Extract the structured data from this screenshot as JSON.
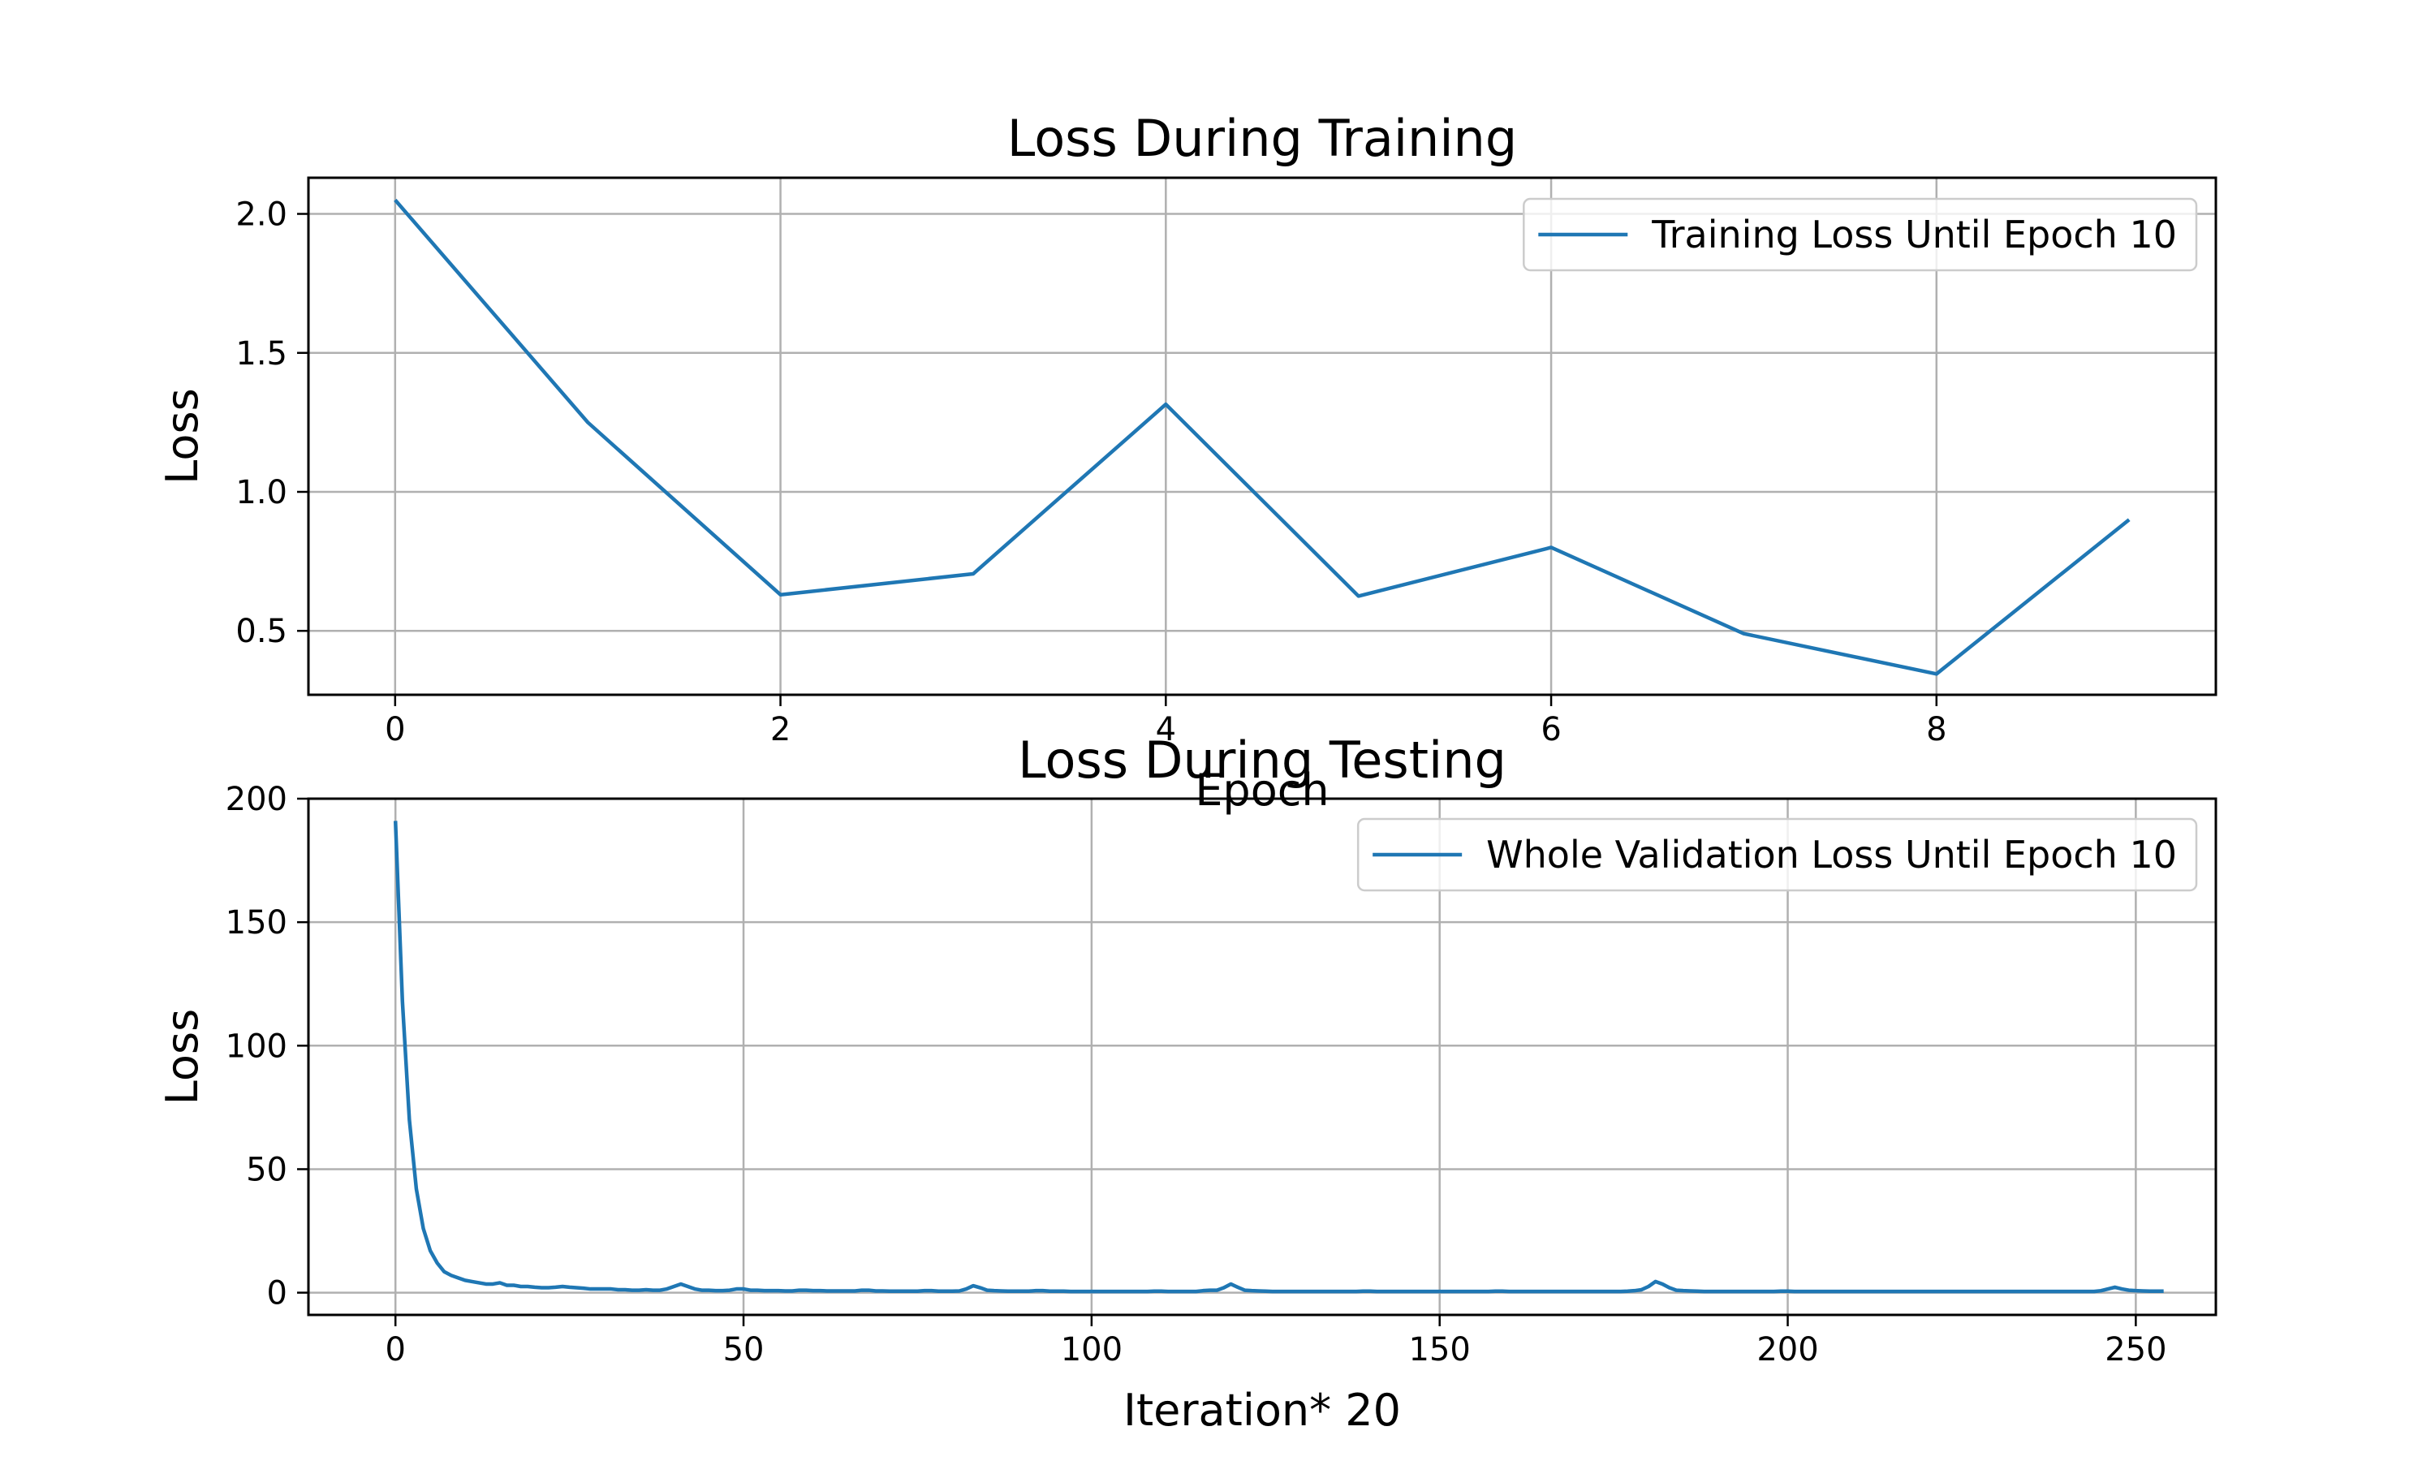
{
  "chart_data": [
    {
      "type": "line",
      "title": "Loss During Training",
      "xlabel": "Epoch",
      "ylabel": "Loss",
      "xlim": [
        -0.45,
        9.45
      ],
      "ylim": [
        0.27,
        2.13
      ],
      "xticks": [
        0,
        2,
        4,
        6,
        8
      ],
      "yticks": [
        0.5,
        1.0,
        1.5,
        2.0
      ],
      "xtick_labels": [
        "0",
        "2",
        "4",
        "6",
        "8"
      ],
      "ytick_labels": [
        "0.5",
        "1.0",
        "1.5",
        "2.0"
      ],
      "grid": true,
      "legend_position": "top-right",
      "series": [
        {
          "name": "Training Loss Until Epoch  10",
          "color": "#1f77b4",
          "x": [
            0,
            1,
            2,
            3,
            4,
            5,
            6,
            7,
            8,
            9
          ],
          "y": [
            2.05,
            1.25,
            0.63,
            0.705,
            1.315,
            0.625,
            0.8,
            0.49,
            0.345,
            0.9
          ]
        }
      ]
    },
    {
      "type": "line",
      "title": "Loss During Testing",
      "xlabel": "Iteration*   20",
      "ylabel": "Loss",
      "xlim": [
        -12.5,
        261.5
      ],
      "ylim": [
        -9,
        200
      ],
      "xticks": [
        0,
        50,
        100,
        150,
        200,
        250
      ],
      "yticks": [
        0,
        50,
        100,
        150,
        200
      ],
      "xtick_labels": [
        "0",
        "50",
        "100",
        "150",
        "200",
        "250"
      ],
      "ytick_labels": [
        "0",
        "50",
        "100",
        "150",
        "200"
      ],
      "grid": true,
      "legend_position": "top-right",
      "series": [
        {
          "name": "Whole Validation Loss Until Epoch  10",
          "color": "#1f77b4",
          "x_start": 0,
          "x_step": 1,
          "y": [
            191,
            118,
            70,
            42,
            26,
            17,
            12,
            8.5,
            7,
            6,
            5,
            4.5,
            4,
            3.5,
            3.5,
            4,
            3,
            3,
            2.5,
            2.5,
            2.2,
            2,
            2,
            2.2,
            2.5,
            2.2,
            2,
            1.8,
            1.5,
            1.5,
            1.5,
            1.5,
            1.2,
            1.2,
            1,
            1,
            1.2,
            1,
            1,
            1.5,
            2.5,
            3.5,
            2.5,
            1.5,
            1,
            1,
            0.8,
            0.8,
            1,
            1.5,
            1.5,
            1,
            1,
            0.8,
            0.8,
            0.8,
            0.7,
            0.7,
            1,
            1,
            0.8,
            0.8,
            0.7,
            0.7,
            0.7,
            0.7,
            0.7,
            1,
            1,
            0.7,
            0.7,
            0.6,
            0.6,
            0.6,
            0.6,
            0.6,
            0.8,
            0.8,
            0.6,
            0.6,
            0.6,
            0.7,
            1.5,
            2.8,
            2,
            1,
            0.8,
            0.7,
            0.6,
            0.6,
            0.6,
            0.6,
            0.8,
            0.8,
            0.6,
            0.6,
            0.6,
            0.5,
            0.5,
            0.5,
            0.5,
            0.5,
            0.5,
            0.5,
            0.5,
            0.5,
            0.5,
            0.5,
            0.5,
            0.6,
            0.6,
            0.5,
            0.5,
            0.5,
            0.5,
            0.5,
            0.8,
            1,
            1,
            2,
            3.5,
            2.2,
            1,
            0.8,
            0.7,
            0.6,
            0.5,
            0.5,
            0.5,
            0.5,
            0.5,
            0.5,
            0.5,
            0.5,
            0.5,
            0.5,
            0.5,
            0.5,
            0.5,
            0.6,
            0.6,
            0.5,
            0.5,
            0.5,
            0.5,
            0.5,
            0.5,
            0.5,
            0.5,
            0.5,
            0.5,
            0.5,
            0.5,
            0.5,
            0.5,
            0.5,
            0.5,
            0.5,
            0.6,
            0.6,
            0.5,
            0.5,
            0.5,
            0.5,
            0.5,
            0.5,
            0.5,
            0.5,
            0.5,
            0.5,
            0.5,
            0.5,
            0.5,
            0.5,
            0.5,
            0.5,
            0.5,
            0.6,
            0.8,
            1.2,
            2.5,
            4.5,
            3.5,
            2,
            1,
            0.8,
            0.7,
            0.6,
            0.5,
            0.5,
            0.5,
            0.5,
            0.5,
            0.5,
            0.5,
            0.5,
            0.5,
            0.5,
            0.5,
            0.6,
            0.6,
            0.5,
            0.5,
            0.5,
            0.5,
            0.5,
            0.5,
            0.5,
            0.5,
            0.5,
            0.5,
            0.5,
            0.5,
            0.5,
            0.5,
            0.5,
            0.5,
            0.5,
            0.5,
            0.5,
            0.5,
            0.5,
            0.5,
            0.5,
            0.5,
            0.5,
            0.5,
            0.5,
            0.5,
            0.5,
            0.5,
            0.5,
            0.5,
            0.5,
            0.5,
            0.5,
            0.5,
            0.5,
            0.5,
            0.5,
            0.5,
            0.5,
            0.5,
            0.5,
            0.5,
            0.8,
            1.5,
            2.2,
            1.5,
            1,
            0.8,
            0.7,
            0.6,
            0.6,
            0.6
          ]
        }
      ]
    }
  ]
}
